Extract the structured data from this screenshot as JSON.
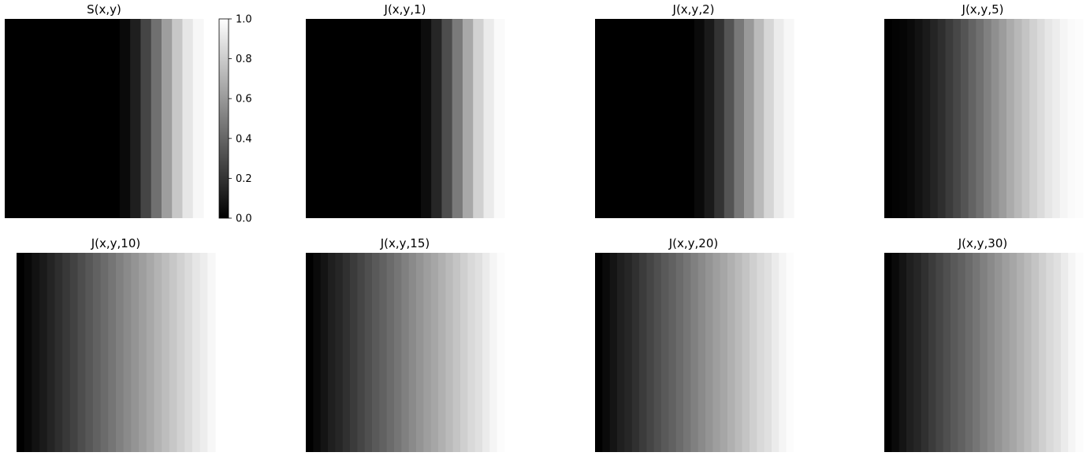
{
  "chart_data": {
    "type": "heatmap",
    "colormap": "gray",
    "grid": false,
    "axes": "off",
    "panels": [
      {
        "id": "S",
        "title": "S(x,y)",
        "columns": 19,
        "values": [
          0,
          0,
          0,
          0,
          0,
          0,
          0,
          0,
          0,
          0,
          0,
          0.04,
          0.12,
          0.27,
          0.44,
          0.62,
          0.78,
          0.9,
          0.97
        ]
      },
      {
        "id": "J1",
        "title": "J(x,y,1)",
        "columns": 19,
        "values": [
          0,
          0,
          0,
          0,
          0,
          0,
          0,
          0,
          0,
          0,
          0,
          0.05,
          0.15,
          0.3,
          0.48,
          0.66,
          0.82,
          0.92,
          0.98
        ]
      },
      {
        "id": "J2",
        "title": "J(x,y,2)",
        "columns": 20,
        "values": [
          0,
          0,
          0,
          0,
          0,
          0,
          0,
          0,
          0,
          0,
          0.04,
          0.1,
          0.2,
          0.33,
          0.47,
          0.6,
          0.73,
          0.84,
          0.92,
          0.97
        ]
      },
      {
        "id": "J5",
        "title": "J(x,y,5)",
        "columns": 26,
        "values": [
          0,
          0.01,
          0.02,
          0.04,
          0.07,
          0.1,
          0.14,
          0.18,
          0.23,
          0.28,
          0.33,
          0.39,
          0.44,
          0.5,
          0.56,
          0.61,
          0.67,
          0.72,
          0.77,
          0.82,
          0.86,
          0.9,
          0.93,
          0.96,
          0.98,
          0.99
        ]
      },
      {
        "id": "J10",
        "title": "J(x,y,10)",
        "columns": 26,
        "values": [
          0,
          0.03,
          0.07,
          0.1,
          0.14,
          0.18,
          0.22,
          0.26,
          0.3,
          0.34,
          0.38,
          0.42,
          0.46,
          0.5,
          0.54,
          0.58,
          0.62,
          0.66,
          0.7,
          0.74,
          0.78,
          0.82,
          0.86,
          0.9,
          0.93,
          0.97
        ]
      },
      {
        "id": "J15",
        "title": "J(x,y,15)",
        "columns": 27,
        "values": [
          0,
          0.04,
          0.08,
          0.12,
          0.15,
          0.19,
          0.23,
          0.27,
          0.31,
          0.35,
          0.38,
          0.42,
          0.46,
          0.5,
          0.54,
          0.58,
          0.62,
          0.65,
          0.69,
          0.73,
          0.77,
          0.81,
          0.85,
          0.88,
          0.92,
          0.96,
          0.99
        ]
      },
      {
        "id": "J20",
        "title": "J(x,y,20)",
        "columns": 27,
        "values": [
          0,
          0.04,
          0.08,
          0.12,
          0.15,
          0.19,
          0.23,
          0.27,
          0.31,
          0.35,
          0.38,
          0.42,
          0.46,
          0.5,
          0.54,
          0.58,
          0.62,
          0.65,
          0.69,
          0.73,
          0.77,
          0.81,
          0.85,
          0.88,
          0.92,
          0.96,
          0.99
        ]
      },
      {
        "id": "J30",
        "title": "J(x,y,30)",
        "columns": 27,
        "values": [
          0,
          0.04,
          0.08,
          0.12,
          0.15,
          0.19,
          0.23,
          0.27,
          0.31,
          0.35,
          0.38,
          0.42,
          0.46,
          0.5,
          0.54,
          0.58,
          0.62,
          0.65,
          0.69,
          0.73,
          0.77,
          0.81,
          0.85,
          0.88,
          0.92,
          0.96,
          0.99
        ]
      }
    ],
    "colorbar": {
      "range": [
        0.0,
        1.0
      ],
      "ticks": [
        0.0,
        0.2,
        0.4,
        0.6,
        0.8,
        1.0
      ],
      "tick_labels": [
        "0.0",
        "0.2",
        "0.4",
        "0.6",
        "0.8",
        "1.0"
      ]
    }
  }
}
